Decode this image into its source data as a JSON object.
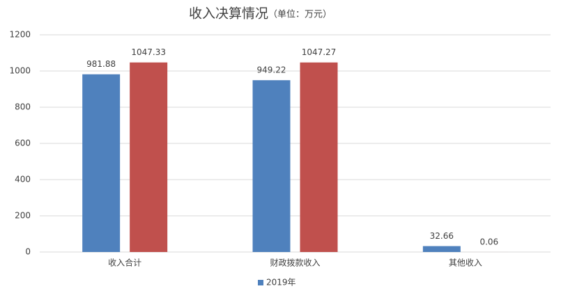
{
  "chart_data": {
    "type": "bar",
    "title": "收入决算情况",
    "subtitle": "（单位：万元）",
    "categories": [
      "收入合计",
      "财政拨款收入",
      "其他收入"
    ],
    "series": [
      {
        "name": "2019年",
        "color": "#4f81bd",
        "values": [
          981.88,
          949.22,
          32.66
        ]
      },
      {
        "color": "#c0504d",
        "values": [
          1047.33,
          1047.27,
          0.06
        ]
      }
    ],
    "ylim": [
      0,
      1200
    ],
    "yticks": [
      0,
      200,
      400,
      600,
      800,
      1000,
      1200
    ],
    "grid": true
  }
}
